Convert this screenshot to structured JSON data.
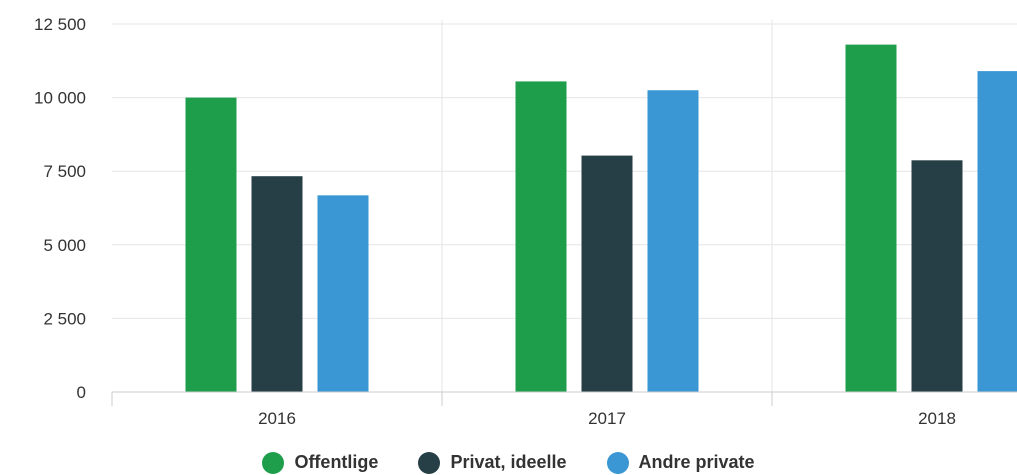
{
  "chart_data": {
    "type": "bar",
    "categories": [
      "2016",
      "2017",
      "2018"
    ],
    "series": [
      {
        "name": "Offentlige",
        "color": "#1e9e4a",
        "values": [
          10000,
          10550,
          11800
        ]
      },
      {
        "name": "Privat, ideelle",
        "color": "#263e45",
        "values": [
          7330,
          8030,
          7870
        ]
      },
      {
        "name": "Andre private",
        "color": "#3a97d4",
        "values": [
          6680,
          10250,
          10900
        ]
      }
    ],
    "ylim": [
      0,
      12500
    ],
    "yticks": [
      0,
      2500,
      5000,
      7500,
      10000,
      12500
    ],
    "ytick_labels": [
      "0",
      "2 500",
      "5 000",
      "7 500",
      "10 000",
      "12 500"
    ],
    "grid": true,
    "legend_position": "bottom-center"
  }
}
